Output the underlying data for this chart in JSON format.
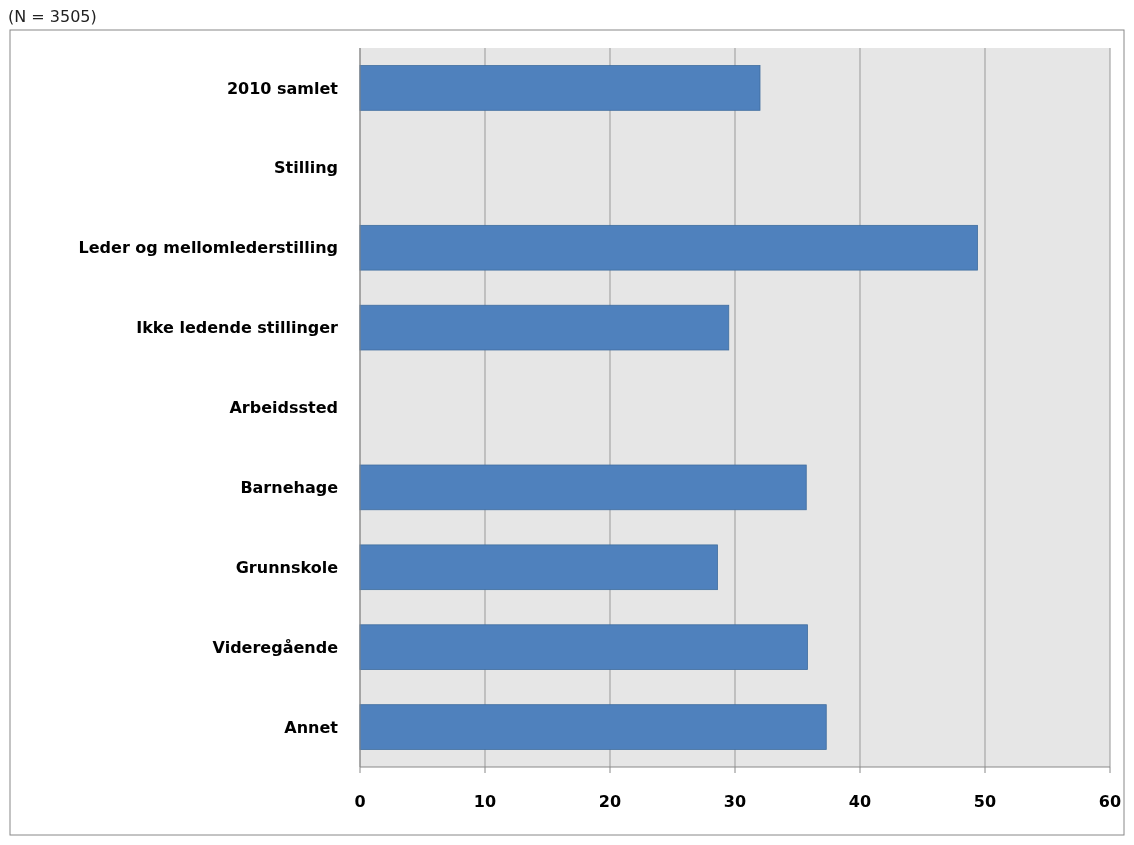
{
  "chart_data": {
    "type": "bar",
    "orientation": "horizontal",
    "subtitle": "(N = 3505)",
    "categories": [
      "2010 samlet",
      "Stilling",
      "Leder og mellomlederstilling",
      "Ikke ledende stillinger",
      "Arbeidssted",
      "Barnehage",
      "Grunnskole",
      "Videregående",
      "Annet"
    ],
    "values": [
      32.0,
      null,
      49.4,
      29.5,
      null,
      35.7,
      28.6,
      35.8,
      37.3
    ],
    "color": "#4f81bd",
    "xlim": [
      0,
      60
    ],
    "xticks": [
      0,
      10,
      20,
      30,
      40,
      50,
      60
    ],
    "grid": "x"
  }
}
